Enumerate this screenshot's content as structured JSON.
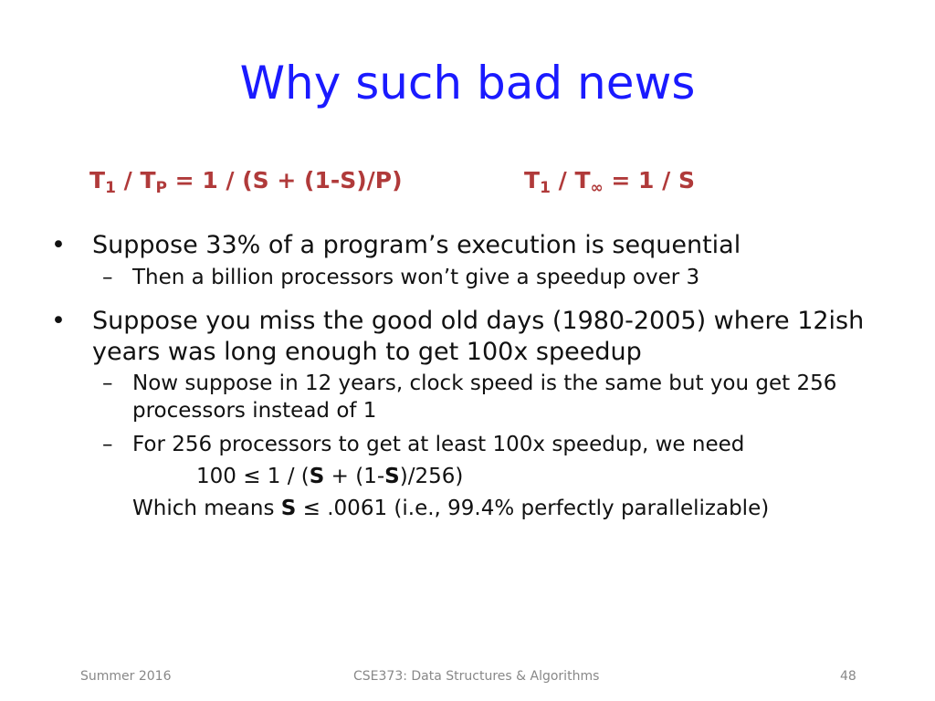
{
  "slide": {
    "title": "Why such bad news"
  },
  "formulas": {
    "left": {
      "t": "T",
      "sub1": "1",
      "slash": " / T",
      "sub2": "P",
      "rest": "  = 1 / (S + (1-S)/P)"
    },
    "right": {
      "t": "T",
      "sub1": "1",
      "slash": " / T",
      "sub2": "∞",
      "rest": "  = 1 / S"
    }
  },
  "bullets": [
    {
      "text": "Suppose 33% of a program’s execution is sequential",
      "subs": [
        "Then a billion processors won’t give a speedup over 3"
      ]
    },
    {
      "text": "Suppose you miss the good old days (1980-2005) where 12ish years was long enough to get 100x speedup",
      "subs": [
        "Now suppose in 12 years, clock speed is the same but you get 256 processors instead of 1",
        "For 256 processors to get at least 100x speedup, we need"
      ],
      "equation": {
        "a": "100 ≤ 1 / (",
        "s1": "S",
        "b": " + (1-",
        "s2": "S",
        "c": ")/256)"
      },
      "means": {
        "a": "Which means ",
        "s": "S",
        "b": " ≤ .0061  (i.e., 99.4% perfectly parallelizable)"
      }
    }
  ],
  "glyphs": {
    "bullet": "•",
    "dash": "–"
  },
  "footer": {
    "left": "Summer 2016",
    "center": "CSE373: Data Structures & Algorithms",
    "right": "48"
  },
  "colors": {
    "title": "#1a1aff",
    "formula": "#b03a3a",
    "footer": "#888888"
  }
}
